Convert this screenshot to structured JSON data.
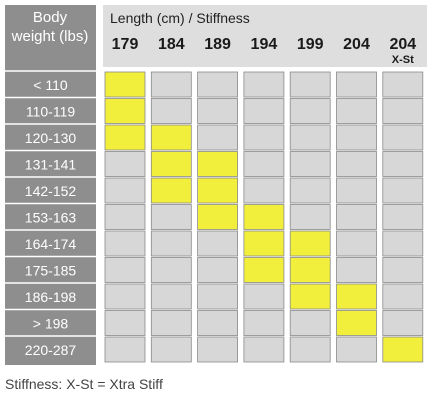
{
  "chart_data": {
    "type": "table",
    "row_header": [
      "Body",
      "weight (lbs)"
    ],
    "column_header_title": "Length (cm) / Stiffness",
    "columns": [
      {
        "length": "179",
        "stiffness": ""
      },
      {
        "length": "184",
        "stiffness": ""
      },
      {
        "length": "189",
        "stiffness": ""
      },
      {
        "length": "194",
        "stiffness": ""
      },
      {
        "length": "199",
        "stiffness": ""
      },
      {
        "length": "204",
        "stiffness": ""
      },
      {
        "length": "204",
        "stiffness": "X-St"
      }
    ],
    "rows": [
      "< 110",
      "110-119",
      "120-130",
      "131-141",
      "142-152",
      "153-163",
      "164-174",
      "175-185",
      "186-198",
      "> 198",
      "220-287"
    ],
    "recommended": [
      [
        1,
        0,
        0,
        0,
        0,
        0,
        0
      ],
      [
        1,
        0,
        0,
        0,
        0,
        0,
        0
      ],
      [
        1,
        1,
        0,
        0,
        0,
        0,
        0
      ],
      [
        0,
        1,
        1,
        0,
        0,
        0,
        0
      ],
      [
        0,
        1,
        1,
        0,
        0,
        0,
        0
      ],
      [
        0,
        0,
        1,
        1,
        0,
        0,
        0
      ],
      [
        0,
        0,
        0,
        1,
        1,
        0,
        0
      ],
      [
        0,
        0,
        0,
        1,
        1,
        0,
        0
      ],
      [
        0,
        0,
        0,
        0,
        1,
        1,
        0
      ],
      [
        0,
        0,
        0,
        0,
        0,
        1,
        0
      ],
      [
        0,
        0,
        0,
        0,
        0,
        0,
        1
      ]
    ],
    "footnote": "Stiffness: X-St = Xtra Stiff",
    "colors": {
      "highlight": "#f2ee3c",
      "cell": "#d7d7d7",
      "row_header_bg": "#8e8e8e",
      "column_header_bg": "#dedede",
      "background": "#ffffff"
    }
  }
}
